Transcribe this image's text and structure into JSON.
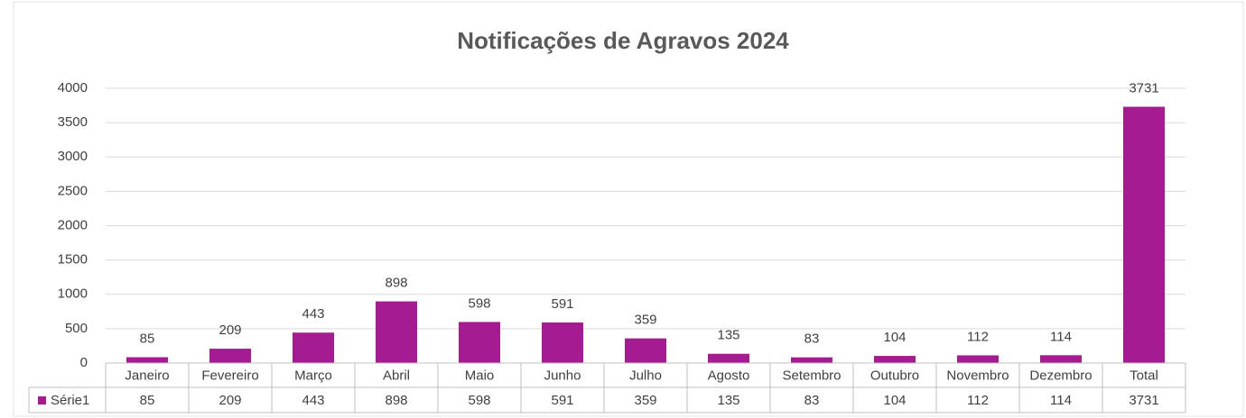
{
  "chart_data": {
    "type": "bar",
    "title": "Notificações de Agravos  2024",
    "categories": [
      "Janeiro",
      "Fevereiro",
      "Março",
      "Abril",
      "Maio",
      "Junho",
      "Julho",
      "Agosto",
      "Setembro",
      "Outubro",
      "Novembro",
      "Dezembro",
      "Total"
    ],
    "series": [
      {
        "name": "Série1",
        "color": "#a51c92",
        "values": [
          85,
          209,
          443,
          898,
          598,
          591,
          359,
          135,
          83,
          104,
          112,
          114,
          3731
        ]
      }
    ],
    "ylim": [
      0,
      4000
    ],
    "yticks": [
      0,
      500,
      1000,
      1500,
      2000,
      2500,
      3000,
      3500,
      4000
    ],
    "grid": true,
    "data_table": true
  }
}
